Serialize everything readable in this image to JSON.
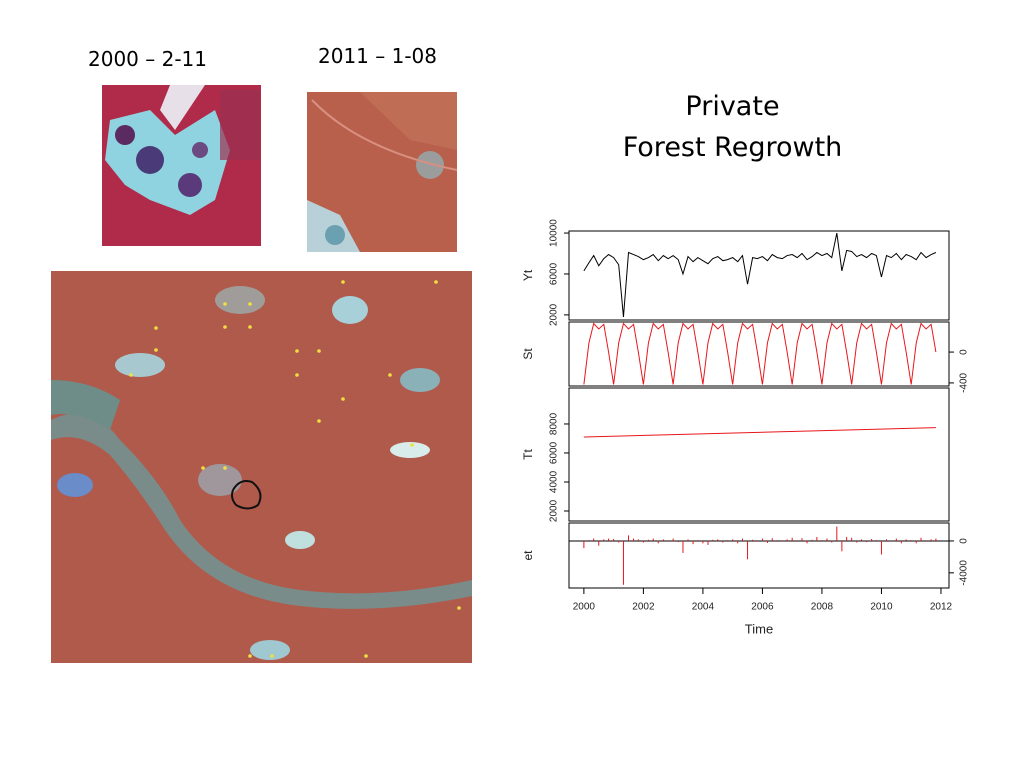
{
  "labels": {
    "image_2000": "2000 – 2-11",
    "image_2011": "2011 – 1-08"
  },
  "title": [
    "Private",
    "Forest Regrowth"
  ],
  "chart_data": [
    {
      "type": "line",
      "y_label": "Yt",
      "y_axis_side": "left",
      "color": "#000000",
      "xlim": [
        1999.5,
        2012.27
      ],
      "ylim": [
        1500,
        10200
      ],
      "yticks": [
        2000,
        6000,
        10000
      ],
      "x": [
        2000,
        2000.17,
        2000.33,
        2000.5,
        2000.67,
        2000.83,
        2001,
        2001.17,
        2001.33,
        2001.5,
        2001.67,
        2001.83,
        2002,
        2002.17,
        2002.33,
        2002.5,
        2002.67,
        2002.83,
        2003,
        2003.17,
        2003.33,
        2003.5,
        2003.67,
        2003.83,
        2004,
        2004.17,
        2004.33,
        2004.5,
        2004.67,
        2004.83,
        2005,
        2005.17,
        2005.33,
        2005.5,
        2005.67,
        2005.83,
        2006,
        2006.17,
        2006.33,
        2006.5,
        2006.67,
        2006.83,
        2007,
        2007.17,
        2007.33,
        2007.5,
        2007.67,
        2007.83,
        2008,
        2008.17,
        2008.33,
        2008.5,
        2008.67,
        2008.83,
        2009,
        2009.17,
        2009.33,
        2009.5,
        2009.67,
        2009.83,
        2010,
        2010.17,
        2010.33,
        2010.5,
        2010.67,
        2010.83,
        2011,
        2011.17,
        2011.33,
        2011.5,
        2011.67,
        2011.83
      ],
      "values": [
        6300,
        7100,
        7800,
        6800,
        7500,
        7900,
        7600,
        6900,
        1800,
        8100,
        7900,
        7700,
        7400,
        7600,
        7900,
        7300,
        7800,
        7500,
        7800,
        7400,
        6000,
        7700,
        7200,
        7600,
        7300,
        7000,
        7500,
        7700,
        7300,
        7400,
        7600,
        7200,
        7800,
        5000,
        7600,
        7500,
        7700,
        7300,
        7900,
        7600,
        7500,
        7800,
        7900,
        7600,
        8000,
        7400,
        7700,
        8100,
        7800,
        8000,
        7600,
        10000,
        6300,
        8300,
        8200,
        7700,
        7900,
        7600,
        8000,
        7800,
        5700,
        7800,
        7600,
        8000,
        7400,
        7900,
        7700,
        7400,
        8100,
        7600,
        7900,
        8100
      ]
    },
    {
      "type": "line",
      "y_label": "St",
      "y_axis_side": "right",
      "color": "#e8161b",
      "xlim": [
        1999.5,
        2012.27
      ],
      "ylim": [
        -440,
        390
      ],
      "yticks": [
        -400,
        0
      ],
      "x": [
        2000,
        2000.17,
        2000.33,
        2000.5,
        2000.67,
        2000.83,
        2001,
        2001.17,
        2001.33,
        2001.5,
        2001.67,
        2001.83,
        2002,
        2002.17,
        2002.33,
        2002.5,
        2002.67,
        2002.83,
        2003,
        2003.17,
        2003.33,
        2003.5,
        2003.67,
        2003.83,
        2004,
        2004.17,
        2004.33,
        2004.5,
        2004.67,
        2004.83,
        2005,
        2005.17,
        2005.33,
        2005.5,
        2005.67,
        2005.83,
        2006,
        2006.17,
        2006.33,
        2006.5,
        2006.67,
        2006.83,
        2007,
        2007.17,
        2007.33,
        2007.5,
        2007.67,
        2007.83,
        2008,
        2008.17,
        2008.33,
        2008.5,
        2008.67,
        2008.83,
        2009,
        2009.17,
        2009.33,
        2009.5,
        2009.67,
        2009.83,
        2010,
        2010.17,
        2010.33,
        2010.5,
        2010.67,
        2010.83,
        2011,
        2011.17,
        2011.33,
        2011.5,
        2011.67,
        2011.83
      ],
      "values": [
        -420,
        120,
        370,
        300,
        360,
        0,
        -420,
        120,
        370,
        300,
        360,
        0,
        -420,
        120,
        370,
        300,
        360,
        0,
        -420,
        120,
        370,
        300,
        360,
        0,
        -420,
        120,
        370,
        300,
        360,
        0,
        -420,
        120,
        370,
        300,
        360,
        0,
        -420,
        120,
        370,
        300,
        360,
        0,
        -420,
        120,
        370,
        300,
        360,
        0,
        -420,
        120,
        370,
        300,
        360,
        0,
        -420,
        120,
        370,
        300,
        360,
        0,
        -420,
        120,
        370,
        300,
        360,
        0,
        -420,
        120,
        370,
        300,
        360,
        0
      ]
    },
    {
      "type": "line",
      "y_label": "Tt",
      "y_axis_side": "left",
      "color": "#e8161b",
      "xlim": [
        1999.5,
        2012.27
      ],
      "ylim": [
        1310,
        10480
      ],
      "yticks": [
        2000,
        4000,
        6000,
        8000
      ],
      "x": [
        2000,
        2011.83
      ],
      "values": [
        7100,
        7750
      ]
    },
    {
      "type": "bar",
      "y_label": "et",
      "y_axis_side": "right",
      "color": "#e8161b",
      "x_label": "Time",
      "xlim": [
        1999.5,
        2012.27
      ],
      "ylim": [
        -5900,
        2250
      ],
      "yticks": [
        -4000,
        0
      ],
      "xticks": [
        2000,
        2002,
        2004,
        2006,
        2008,
        2010,
        2012
      ],
      "x": [
        2000,
        2000.17,
        2000.33,
        2000.5,
        2000.67,
        2000.83,
        2001,
        2001.17,
        2001.33,
        2001.5,
        2001.67,
        2001.83,
        2002,
        2002.17,
        2002.33,
        2002.5,
        2002.67,
        2002.83,
        2003,
        2003.17,
        2003.33,
        2003.5,
        2003.67,
        2003.83,
        2004,
        2004.17,
        2004.33,
        2004.5,
        2004.67,
        2004.83,
        2005,
        2005.17,
        2005.33,
        2005.5,
        2005.67,
        2005.83,
        2006,
        2006.17,
        2006.33,
        2006.5,
        2006.67,
        2006.83,
        2007,
        2007.17,
        2007.33,
        2007.5,
        2007.67,
        2007.83,
        2008,
        2008.17,
        2008.33,
        2008.5,
        2008.67,
        2008.83,
        2009,
        2009.17,
        2009.33,
        2009.5,
        2009.67,
        2009.83,
        2010,
        2010.17,
        2010.33,
        2010.5,
        2010.67,
        2010.83,
        2011,
        2011.17,
        2011.33,
        2011.5,
        2011.67,
        2011.83
      ],
      "values": [
        -900,
        100,
        300,
        -600,
        200,
        300,
        250,
        -200,
        -5500,
        700,
        300,
        200,
        -200,
        150,
        300,
        -300,
        200,
        -100,
        300,
        -150,
        -1500,
        200,
        -400,
        100,
        -300,
        -500,
        150,
        200,
        -200,
        100,
        200,
        -300,
        300,
        -2300,
        150,
        -100,
        300,
        -250,
        350,
        100,
        -100,
        200,
        400,
        -100,
        350,
        -300,
        150,
        500,
        100,
        300,
        -200,
        1800,
        -1300,
        500,
        400,
        -200,
        200,
        -150,
        250,
        100,
        -1700,
        200,
        -100,
        300,
        -300,
        200,
        100,
        -300,
        400,
        -100,
        200,
        300
      ]
    }
  ]
}
